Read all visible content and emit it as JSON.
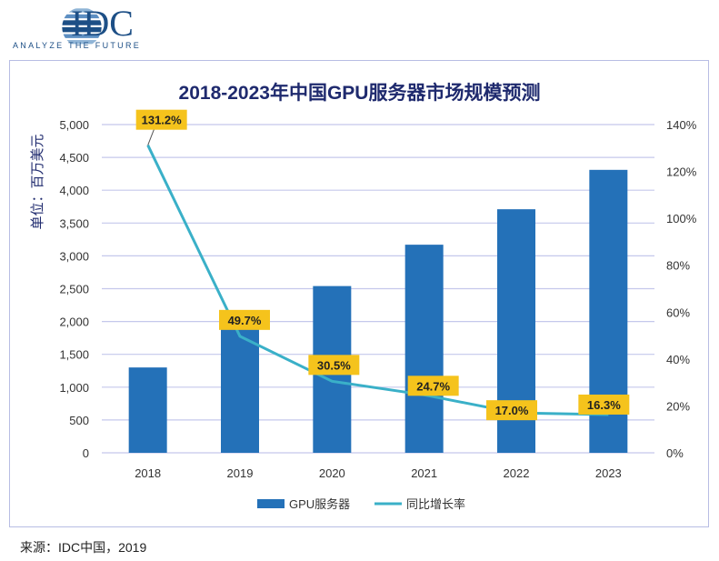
{
  "logo": {
    "text": "IDC",
    "tagline": "ANALYZE THE FUTURE"
  },
  "chart_data": {
    "type": "bar+line",
    "title": "2018-2023年中国GPU服务器市场规模预测",
    "ylabel": "单位：百万美元",
    "categories": [
      "2018",
      "2019",
      "2020",
      "2021",
      "2022",
      "2023"
    ],
    "ylim": [
      0,
      5000
    ],
    "y_ticks": [
      "0",
      "500",
      "1,000",
      "1,500",
      "2,000",
      "2,500",
      "3,000",
      "3,500",
      "4,000",
      "4,500",
      "5,000"
    ],
    "y2lim": [
      0,
      140
    ],
    "y2_ticks": [
      "0%",
      "20%",
      "40%",
      "60%",
      "80%",
      "100%",
      "120%",
      "140%"
    ],
    "grid": true,
    "legend_position": "bottom",
    "series": [
      {
        "name": "GPU服务器",
        "type": "bar",
        "axis": "left",
        "color": "#2471b8",
        "values": [
          1300,
          1950,
          2540,
          3170,
          3710,
          4310
        ]
      },
      {
        "name": "同比增长率",
        "type": "line",
        "axis": "right",
        "color": "#3ab0c8",
        "values": [
          131.2,
          49.7,
          30.5,
          24.7,
          17.0,
          16.3
        ],
        "labels": [
          "131.2%",
          "49.7%",
          "30.5%",
          "24.7%",
          "17.0%",
          "16.3%"
        ],
        "label_color": "#f5c31c"
      }
    ]
  },
  "source": "来源：IDC中国，2019"
}
